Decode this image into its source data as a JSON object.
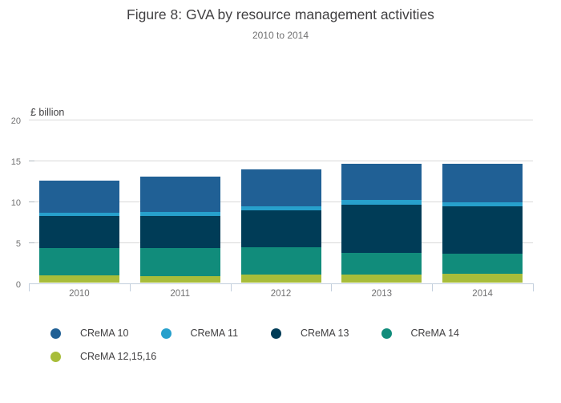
{
  "header": {
    "title": "Figure 8: GVA by resource management activities",
    "subtitle": "2010 to 2014"
  },
  "chart_data": {
    "type": "bar",
    "stacked": true,
    "title": "Figure 8: GVA by resource management activities",
    "subtitle": "2010 to 2014",
    "ylabel": "£ billion",
    "xlabel": "",
    "categories": [
      "2010",
      "2011",
      "2012",
      "2013",
      "2014"
    ],
    "series_bottom_to_top": [
      {
        "name": "CReMA 12,15,16",
        "color": "#a8bd3a",
        "values": [
          0.9,
          0.8,
          1.0,
          1.0,
          1.1
        ]
      },
      {
        "name": "CReMA 14",
        "color": "#118c7b",
        "values": [
          3.4,
          3.5,
          3.4,
          2.7,
          2.5
        ]
      },
      {
        "name": "CReMA 13",
        "color": "#003c57",
        "values": [
          3.9,
          3.9,
          4.5,
          5.9,
          5.8
        ]
      },
      {
        "name": "CReMA 11",
        "color": "#27a0cc",
        "values": [
          0.4,
          0.5,
          0.5,
          0.5,
          0.5
        ]
      },
      {
        "name": "CReMA 10",
        "color": "#206095",
        "values": [
          3.9,
          4.3,
          4.5,
          4.5,
          4.7
        ]
      }
    ],
    "totals": [
      12.5,
      13.0,
      13.9,
      14.6,
      14.6
    ],
    "legend_order": [
      "CReMA 10",
      "CReMA 11",
      "CReMA 13",
      "CReMA 14",
      "CReMA 12,15,16"
    ],
    "yticks": [
      0,
      5,
      10,
      15,
      20
    ],
    "ylim": [
      0,
      20
    ],
    "grid": true,
    "legend_position": "bottom",
    "colors": {
      "grid": "#d9d9d9",
      "axis": "#c3cfdd",
      "title_text": "#414042",
      "muted_text": "#707071"
    }
  }
}
